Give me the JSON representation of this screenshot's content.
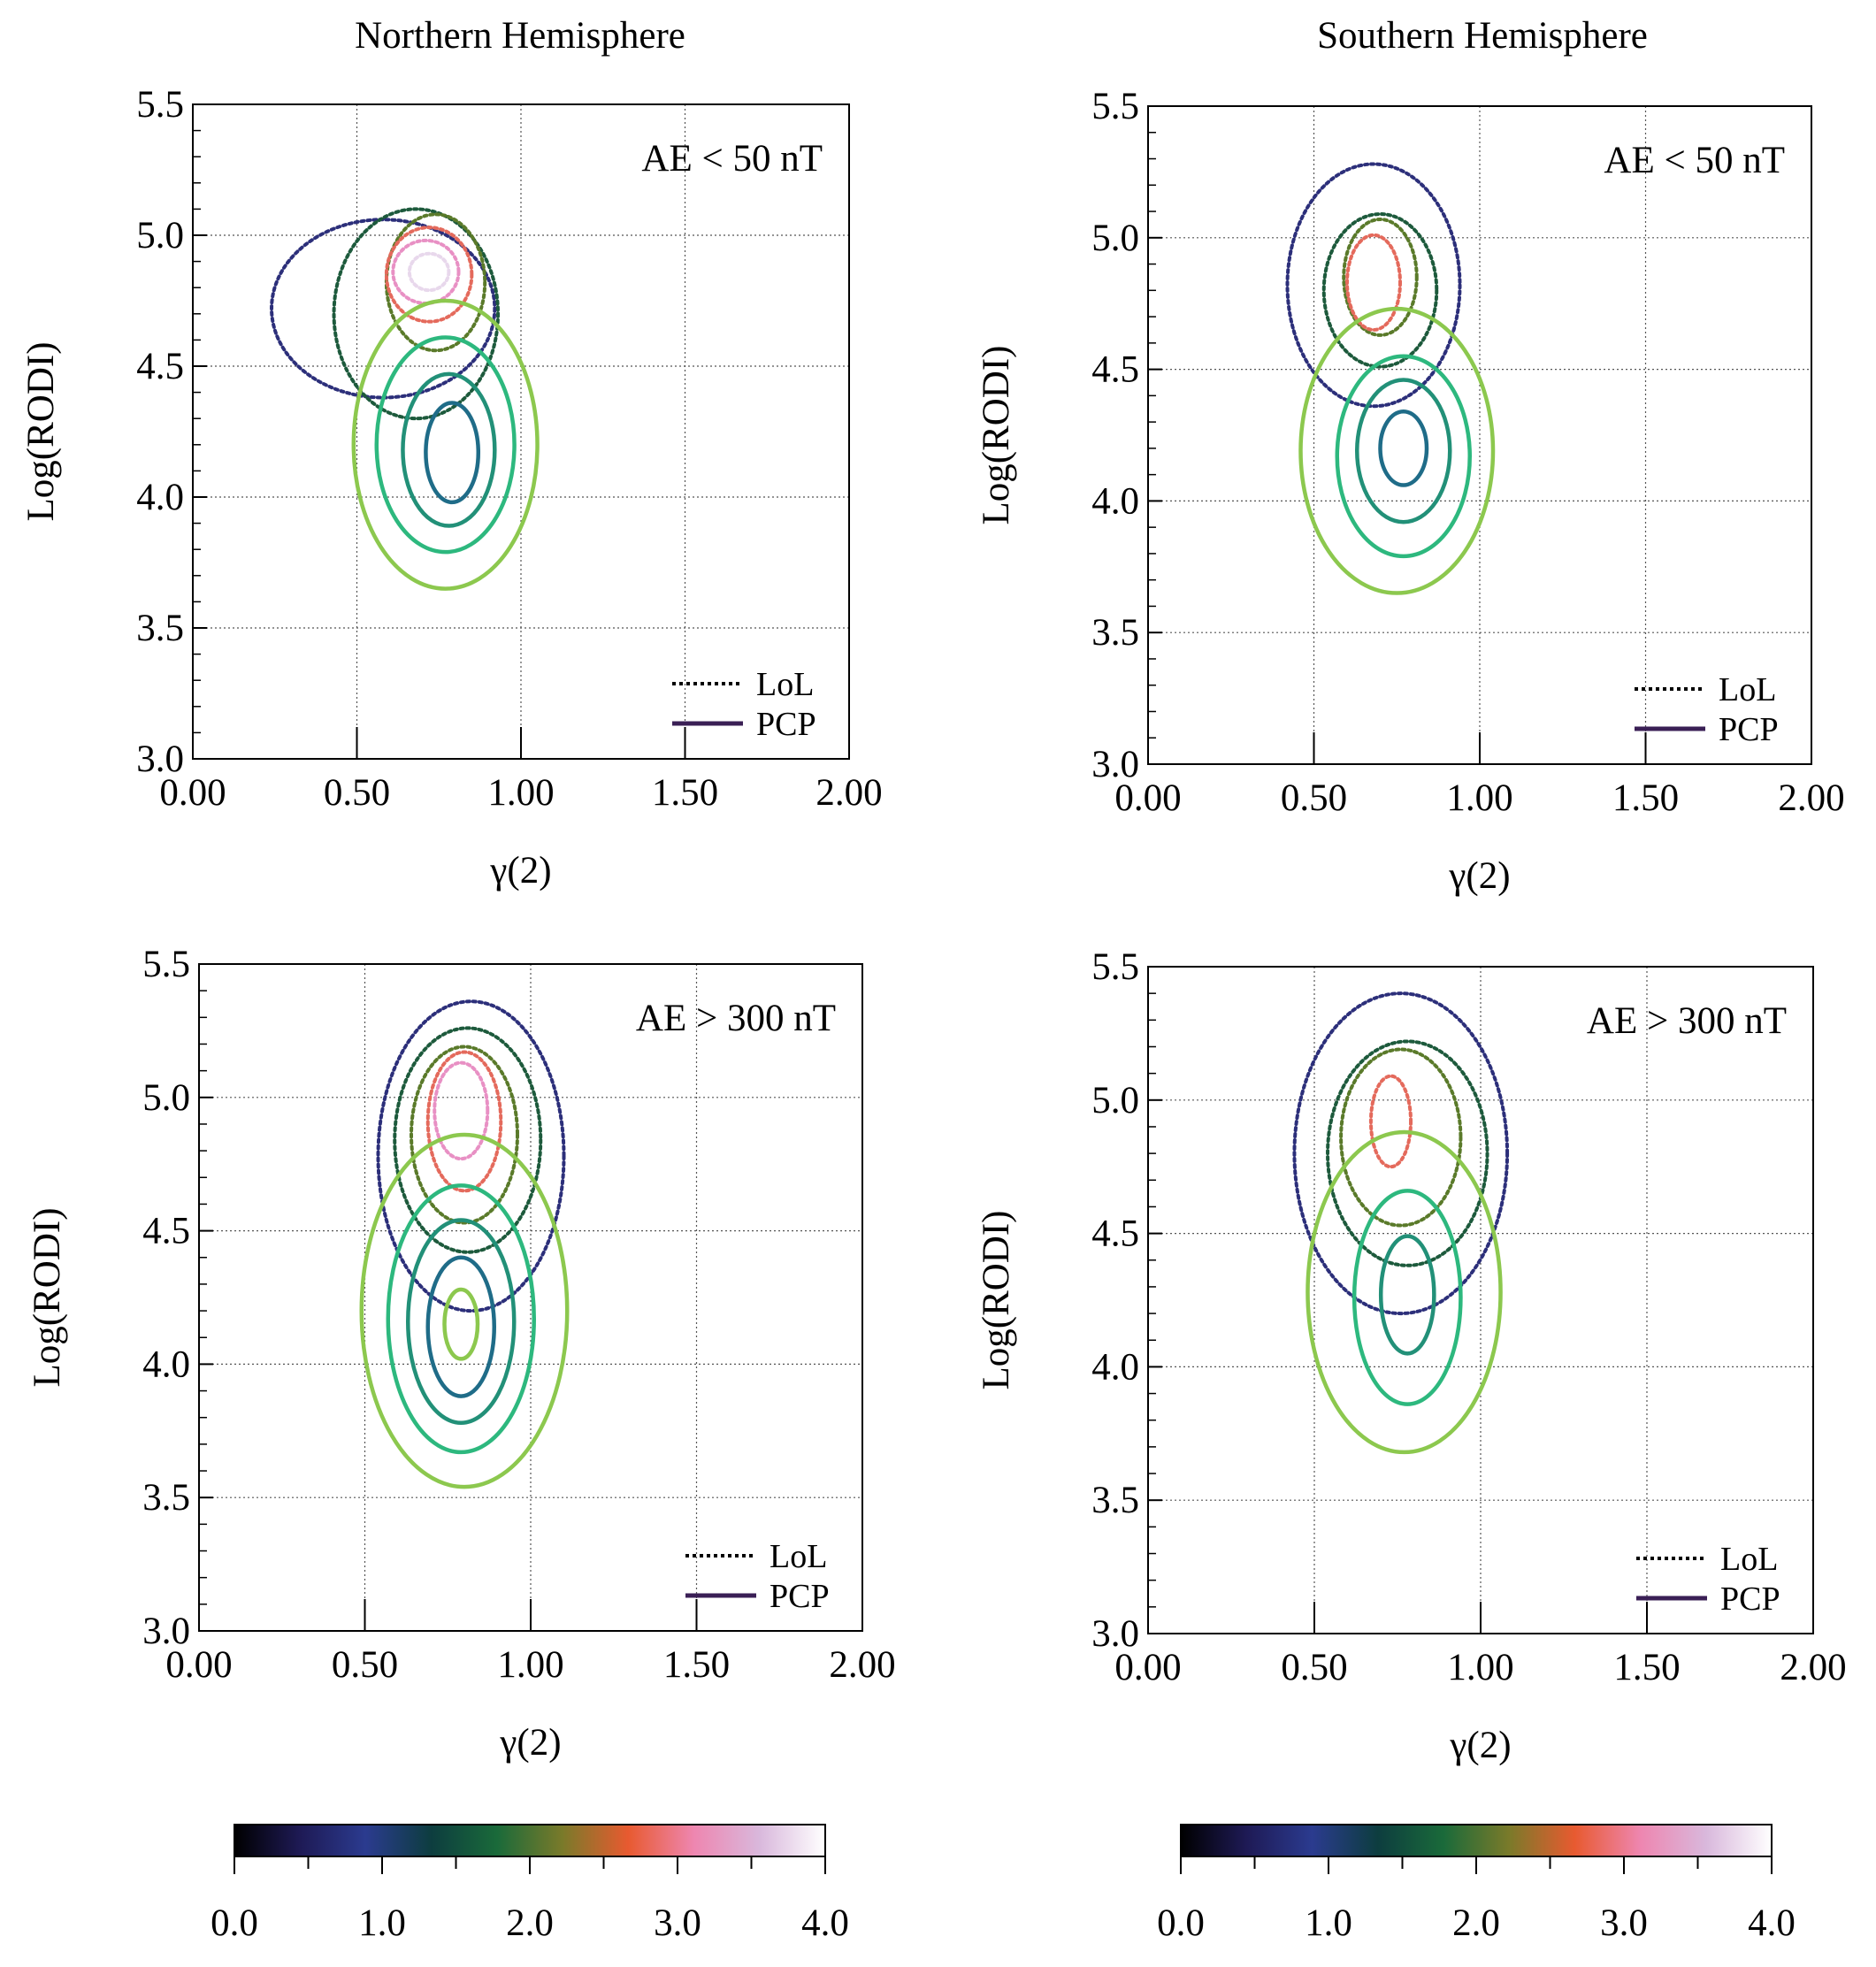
{
  "column_titles": [
    "Northern Hemisphere",
    "Southern Hemisphere"
  ],
  "legend": {
    "dotted": "LoL",
    "solid": "PCP"
  },
  "colors": {
    "lol_levels": [
      "#2c2f7a",
      "#1d5a3c",
      "#5a7a2a",
      "#e46a5c",
      "#e890c4",
      "#e8d8ec"
    ],
    "pcp_levels": [
      "#8cc84e",
      "#2db87e",
      "#229078",
      "#1f6c88"
    ],
    "legend_line": "#3a1f55"
  },
  "colorbar": {
    "ticks": [
      "0.0",
      "1.0",
      "2.0",
      "3.0",
      "4.0"
    ],
    "stops": [
      "#000000",
      "#1e1a55",
      "#2b3b8f",
      "#0d3d3f",
      "#1a6a3a",
      "#7a7a2a",
      "#e85a30",
      "#ee86b0",
      "#d9b8dc",
      "#ffffff"
    ]
  },
  "chart_data": [
    {
      "type": "contour",
      "title": "",
      "hemisphere": "Northern Hemisphere",
      "annotation": "AE < 50 nT",
      "xlabel": "γ(2)",
      "ylabel": "Log(RODI)",
      "xlim": [
        0,
        2
      ],
      "ylim": [
        3.0,
        5.5
      ],
      "xticks": [
        "0.00",
        "0.50",
        "1.00",
        "1.50",
        "2.00"
      ],
      "yticks": [
        "3.0",
        "3.5",
        "4.0",
        "4.5",
        "5.0",
        "5.5"
      ],
      "grid": true,
      "legend_position": "bottom-right",
      "series": [
        {
          "name": "PCP",
          "style": "solid",
          "levels": [
            {
              "level": 1,
              "cx": 0.77,
              "cy": 4.2,
              "rx": 0.28,
              "ry": 0.55
            },
            {
              "level": 2,
              "cx": 0.77,
              "cy": 4.2,
              "rx": 0.21,
              "ry": 0.41
            },
            {
              "level": 3,
              "cx": 0.78,
              "cy": 4.18,
              "rx": 0.14,
              "ry": 0.29
            },
            {
              "level": 4,
              "cx": 0.79,
              "cy": 4.17,
              "rx": 0.08,
              "ry": 0.19
            }
          ]
        },
        {
          "name": "LoL",
          "style": "dotted",
          "levels": [
            {
              "level": 1,
              "cx": 0.58,
              "cy": 4.72,
              "rx": 0.34,
              "ry": 0.34
            },
            {
              "level": 2,
              "cx": 0.68,
              "cy": 4.7,
              "rx": 0.25,
              "ry": 0.4
            },
            {
              "level": 3,
              "cx": 0.74,
              "cy": 4.82,
              "rx": 0.15,
              "ry": 0.26
            },
            {
              "level": 4,
              "cx": 0.72,
              "cy": 4.85,
              "rx": 0.13,
              "ry": 0.18
            },
            {
              "level": 5,
              "cx": 0.71,
              "cy": 4.86,
              "rx": 0.1,
              "ry": 0.12
            },
            {
              "level": 6,
              "cx": 0.72,
              "cy": 4.86,
              "rx": 0.06,
              "ry": 0.07
            }
          ]
        }
      ]
    },
    {
      "type": "contour",
      "title": "",
      "hemisphere": "Southern Hemisphere",
      "annotation": "AE < 50 nT",
      "xlabel": "γ(2)",
      "ylabel": "Log(RODI)",
      "xlim": [
        0,
        2
      ],
      "ylim": [
        3.0,
        5.5
      ],
      "xticks": [
        "0.00",
        "0.50",
        "1.00",
        "1.50",
        "2.00"
      ],
      "yticks": [
        "3.0",
        "3.5",
        "4.0",
        "4.5",
        "5.0",
        "5.5"
      ],
      "grid": true,
      "legend_position": "bottom-right",
      "series": [
        {
          "name": "PCP",
          "style": "solid",
          "levels": [
            {
              "level": 1,
              "cx": 0.75,
              "cy": 4.19,
              "rx": 0.29,
              "ry": 0.54
            },
            {
              "level": 2,
              "cx": 0.77,
              "cy": 4.17,
              "rx": 0.2,
              "ry": 0.38
            },
            {
              "level": 3,
              "cx": 0.77,
              "cy": 4.19,
              "rx": 0.14,
              "ry": 0.27
            },
            {
              "level": 4,
              "cx": 0.77,
              "cy": 4.2,
              "rx": 0.07,
              "ry": 0.14
            }
          ]
        },
        {
          "name": "LoL",
          "style": "dotted",
          "levels": [
            {
              "level": 1,
              "cx": 0.68,
              "cy": 4.82,
              "rx": 0.26,
              "ry": 0.46
            },
            {
              "level": 2,
              "cx": 0.7,
              "cy": 4.8,
              "rx": 0.17,
              "ry": 0.29
            },
            {
              "level": 3,
              "cx": 0.7,
              "cy": 4.85,
              "rx": 0.11,
              "ry": 0.22
            },
            {
              "level": 4,
              "cx": 0.68,
              "cy": 4.83,
              "rx": 0.08,
              "ry": 0.18
            }
          ]
        }
      ]
    },
    {
      "type": "contour",
      "title": "",
      "hemisphere": "Northern Hemisphere",
      "annotation": "AE > 300 nT",
      "xlabel": "γ(2)",
      "ylabel": "Log(RODI)",
      "xlim": [
        0,
        2
      ],
      "ylim": [
        3.0,
        5.5
      ],
      "xticks": [
        "0.00",
        "0.50",
        "1.00",
        "1.50",
        "2.00"
      ],
      "yticks": [
        "3.0",
        "3.5",
        "4.0",
        "4.5",
        "5.0",
        "5.5"
      ],
      "grid": true,
      "legend_position": "bottom-right",
      "series": [
        {
          "name": "PCP",
          "style": "solid",
          "levels": [
            {
              "level": 1,
              "cx": 0.8,
              "cy": 4.2,
              "rx": 0.31,
              "ry": 0.66
            },
            {
              "level": 2,
              "cx": 0.79,
              "cy": 4.17,
              "rx": 0.22,
              "ry": 0.5
            },
            {
              "level": 3,
              "cx": 0.79,
              "cy": 4.16,
              "rx": 0.16,
              "ry": 0.38
            },
            {
              "level": 4,
              "cx": 0.79,
              "cy": 4.14,
              "rx": 0.1,
              "ry": 0.26
            },
            {
              "level": 5,
              "cx": 0.79,
              "cy": 4.15,
              "rx": 0.05,
              "ry": 0.13
            }
          ]
        },
        {
          "name": "LoL",
          "style": "dotted",
          "levels": [
            {
              "level": 1,
              "cx": 0.82,
              "cy": 4.78,
              "rx": 0.28,
              "ry": 0.58
            },
            {
              "level": 2,
              "cx": 0.81,
              "cy": 4.84,
              "rx": 0.22,
              "ry": 0.42
            },
            {
              "level": 3,
              "cx": 0.8,
              "cy": 4.86,
              "rx": 0.16,
              "ry": 0.33
            },
            {
              "level": 4,
              "cx": 0.8,
              "cy": 4.91,
              "rx": 0.11,
              "ry": 0.26
            },
            {
              "level": 5,
              "cx": 0.79,
              "cy": 4.95,
              "rx": 0.08,
              "ry": 0.18
            }
          ]
        }
      ]
    },
    {
      "type": "contour",
      "title": "",
      "hemisphere": "Southern Hemisphere",
      "annotation": "AE > 300 nT",
      "xlabel": "γ(2)",
      "ylabel": "Log(RODI)",
      "xlim": [
        0,
        2
      ],
      "ylim": [
        3.0,
        5.5
      ],
      "xticks": [
        "0.00",
        "0.50",
        "1.00",
        "1.50",
        "2.00"
      ],
      "yticks": [
        "3.0",
        "3.5",
        "4.0",
        "4.5",
        "5.0",
        "5.5"
      ],
      "grid": true,
      "legend_position": "bottom-right",
      "series": [
        {
          "name": "PCP",
          "style": "solid",
          "levels": [
            {
              "level": 1,
              "cx": 0.77,
              "cy": 4.28,
              "rx": 0.29,
              "ry": 0.6
            },
            {
              "level": 2,
              "cx": 0.78,
              "cy": 4.26,
              "rx": 0.16,
              "ry": 0.4
            },
            {
              "level": 3,
              "cx": 0.78,
              "cy": 4.27,
              "rx": 0.08,
              "ry": 0.22
            }
          ]
        },
        {
          "name": "LoL",
          "style": "dotted",
          "levels": [
            {
              "level": 1,
              "cx": 0.76,
              "cy": 4.8,
              "rx": 0.32,
              "ry": 0.6
            },
            {
              "level": 2,
              "cx": 0.78,
              "cy": 4.8,
              "rx": 0.24,
              "ry": 0.42
            },
            {
              "level": 3,
              "cx": 0.76,
              "cy": 4.86,
              "rx": 0.18,
              "ry": 0.33
            },
            {
              "level": 4,
              "cx": 0.73,
              "cy": 4.92,
              "rx": 0.06,
              "ry": 0.17
            }
          ]
        }
      ]
    }
  ]
}
